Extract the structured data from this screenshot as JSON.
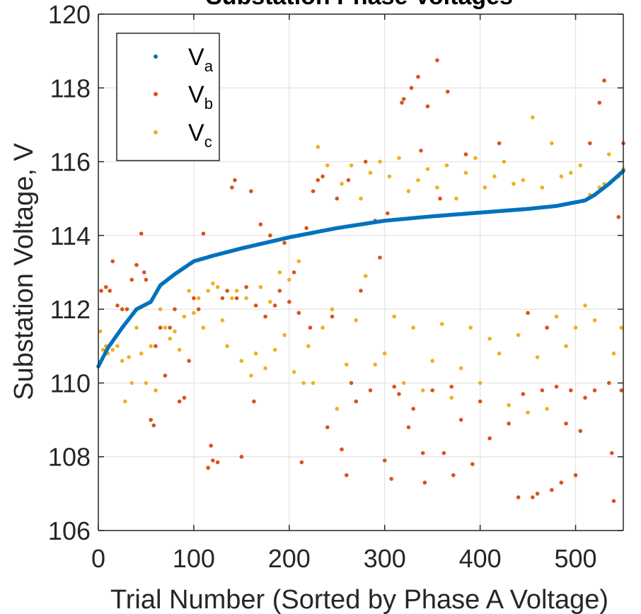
{
  "chart_data": {
    "type": "scatter",
    "title": "Substation Phase Voltages",
    "xlabel": "Trial Number (Sorted by Phase A Voltage)",
    "ylabel": "Substation Voltage, V",
    "xlim": [
      0,
      550
    ],
    "ylim": [
      106,
      120
    ],
    "xticks": [
      "0",
      "100",
      "200",
      "300",
      "400",
      "500"
    ],
    "yticks": [
      "106",
      "108",
      "110",
      "112",
      "114",
      "116",
      "118",
      "120"
    ],
    "grid": true,
    "legend_position": "top-left",
    "colors": {
      "Va": "#0072BD",
      "Vb": "#D95319",
      "Vc": "#EDB120",
      "grid": "#e3e3e3",
      "axis": "#262626"
    },
    "legend": [
      {
        "base": "V",
        "sub": "a"
      },
      {
        "base": "V",
        "sub": "b"
      },
      {
        "base": "V",
        "sub": "c"
      }
    ],
    "series": [
      {
        "name": "Va",
        "description_curve_knots": [
          [
            0,
            110.45
          ],
          [
            10,
            110.95
          ],
          [
            25,
            111.5
          ],
          [
            40,
            112.0
          ],
          [
            55,
            112.2
          ],
          [
            65,
            112.65
          ],
          [
            80,
            112.95
          ],
          [
            100,
            113.3
          ],
          [
            120,
            113.45
          ],
          [
            150,
            113.65
          ],
          [
            200,
            113.95
          ],
          [
            250,
            114.2
          ],
          [
            300,
            114.4
          ],
          [
            350,
            114.52
          ],
          [
            400,
            114.62
          ],
          [
            450,
            114.72
          ],
          [
            480,
            114.8
          ],
          [
            500,
            114.9
          ],
          [
            510,
            114.95
          ],
          [
            520,
            115.1
          ],
          [
            535,
            115.4
          ],
          [
            550,
            115.75
          ]
        ],
        "values": [
          [
            0,
            110.45
          ],
          [
            25,
            111.5
          ],
          [
            50,
            112.1
          ],
          [
            75,
            112.85
          ],
          [
            100,
            113.3
          ],
          [
            150,
            113.65
          ],
          [
            200,
            113.95
          ],
          [
            250,
            114.2
          ],
          [
            300,
            114.4
          ],
          [
            350,
            114.52
          ],
          [
            400,
            114.62
          ],
          [
            450,
            114.72
          ],
          [
            500,
            114.9
          ],
          [
            550,
            115.75
          ]
        ]
      },
      {
        "name": "Vb",
        "points": [
          [
            3,
            112.5
          ],
          [
            8,
            112.6
          ],
          [
            12,
            112.5
          ],
          [
            15,
            113.3
          ],
          [
            20,
            112.1
          ],
          [
            25,
            112.0
          ],
          [
            30,
            112.0
          ],
          [
            35,
            112.8
          ],
          [
            40,
            113.2
          ],
          [
            45,
            114.05
          ],
          [
            48,
            113.0
          ],
          [
            50,
            112.8
          ],
          [
            55,
            109.0
          ],
          [
            58,
            108.85
          ],
          [
            60,
            111.0
          ],
          [
            65,
            111.5
          ],
          [
            70,
            110.2
          ],
          [
            75,
            111.5
          ],
          [
            80,
            112.0
          ],
          [
            85,
            109.5
          ],
          [
            90,
            109.6
          ],
          [
            95,
            110.6
          ],
          [
            100,
            112.3
          ],
          [
            105,
            112.0
          ],
          [
            110,
            114.05
          ],
          [
            115,
            107.7
          ],
          [
            118,
            108.3
          ],
          [
            120,
            107.9
          ],
          [
            125,
            107.85
          ],
          [
            130,
            112.3
          ],
          [
            135,
            112.5
          ],
          [
            140,
            115.3
          ],
          [
            143,
            115.5
          ],
          [
            145,
            112.3
          ],
          [
            150,
            108.0
          ],
          [
            155,
            112.6
          ],
          [
            160,
            115.2
          ],
          [
            163,
            109.5
          ],
          [
            165,
            112.1
          ],
          [
            170,
            114.3
          ],
          [
            175,
            111.8
          ],
          [
            180,
            114.0
          ],
          [
            185,
            112.1
          ],
          [
            190,
            112.5
          ],
          [
            195,
            113.8
          ],
          [
            200,
            112.2
          ],
          [
            205,
            113.0
          ],
          [
            210,
            111.9
          ],
          [
            213,
            107.85
          ],
          [
            218,
            114.2
          ],
          [
            222,
            111.5
          ],
          [
            225,
            115.2
          ],
          [
            230,
            115.5
          ],
          [
            235,
            115.6
          ],
          [
            240,
            108.8
          ],
          [
            245,
            111.8
          ],
          [
            250,
            115.0
          ],
          [
            255,
            108.2
          ],
          [
            260,
            107.5
          ],
          [
            262,
            115.5
          ],
          [
            265,
            110.0
          ],
          [
            270,
            109.5
          ],
          [
            275,
            112.5
          ],
          [
            280,
            116.0
          ],
          [
            285,
            109.8
          ],
          [
            290,
            114.4
          ],
          [
            295,
            113.4
          ],
          [
            300,
            107.9
          ],
          [
            303,
            114.6
          ],
          [
            307,
            107.4
          ],
          [
            310,
            109.9
          ],
          [
            315,
            109.7
          ],
          [
            318,
            117.6
          ],
          [
            320,
            117.7
          ],
          [
            325,
            108.8
          ],
          [
            328,
            118.0
          ],
          [
            330,
            109.3
          ],
          [
            335,
            118.3
          ],
          [
            338,
            116.3
          ],
          [
            340,
            108.1
          ],
          [
            342,
            107.3
          ],
          [
            345,
            117.5
          ],
          [
            350,
            109.8
          ],
          [
            355,
            118.75
          ],
          [
            358,
            115.0
          ],
          [
            362,
            108.1
          ],
          [
            366,
            117.9
          ],
          [
            370,
            109.9
          ],
          [
            372,
            107.5
          ],
          [
            380,
            109.0
          ],
          [
            385,
            116.2
          ],
          [
            392,
            107.8
          ],
          [
            400,
            109.5
          ],
          [
            410,
            108.5
          ],
          [
            420,
            116.5
          ],
          [
            430,
            108.9
          ],
          [
            440,
            106.9
          ],
          [
            445,
            109.7
          ],
          [
            450,
            111.9
          ],
          [
            455,
            106.9
          ],
          [
            460,
            107.0
          ],
          [
            465,
            109.8
          ],
          [
            470,
            111.5
          ],
          [
            475,
            107.1
          ],
          [
            480,
            109.9
          ],
          [
            485,
            107.3
          ],
          [
            490,
            108.9
          ],
          [
            495,
            109.8
          ],
          [
            500,
            107.5
          ],
          [
            505,
            108.7
          ],
          [
            510,
            109.6
          ],
          [
            515,
            116.5
          ],
          [
            520,
            109.8
          ],
          [
            525,
            117.6
          ],
          [
            530,
            118.2
          ],
          [
            535,
            110.0
          ],
          [
            538,
            108.1
          ],
          [
            540,
            106.8
          ],
          [
            545,
            114.5
          ],
          [
            548,
            109.8
          ],
          [
            550,
            116.5
          ]
        ]
      },
      {
        "name": "Vc",
        "points": [
          [
            2,
            111.4
          ],
          [
            5,
            110.9
          ],
          [
            8,
            111.0
          ],
          [
            10,
            110.8
          ],
          [
            15,
            110.9
          ],
          [
            20,
            111.0
          ],
          [
            25,
            110.6
          ],
          [
            28,
            109.5
          ],
          [
            32,
            110.7
          ],
          [
            35,
            110.0
          ],
          [
            40,
            111.5
          ],
          [
            45,
            110.8
          ],
          [
            50,
            110.0
          ],
          [
            55,
            111.0
          ],
          [
            60,
            109.8
          ],
          [
            65,
            112.0
          ],
          [
            70,
            111.5
          ],
          [
            75,
            111.2
          ],
          [
            80,
            111.4
          ],
          [
            85,
            110.9
          ],
          [
            90,
            111.8
          ],
          [
            95,
            112.5
          ],
          [
            100,
            111.9
          ],
          [
            105,
            112.3
          ],
          [
            110,
            111.5
          ],
          [
            115,
            112.5
          ],
          [
            120,
            112.7
          ],
          [
            125,
            112.6
          ],
          [
            130,
            111.7
          ],
          [
            135,
            111.0
          ],
          [
            140,
            112.3
          ],
          [
            145,
            112.5
          ],
          [
            150,
            110.6
          ],
          [
            155,
            112.3
          ],
          [
            160,
            110.2
          ],
          [
            165,
            110.8
          ],
          [
            170,
            112.6
          ],
          [
            175,
            110.4
          ],
          [
            180,
            112.2
          ],
          [
            185,
            110.9
          ],
          [
            190,
            113.0
          ],
          [
            195,
            111.3
          ],
          [
            200,
            112.8
          ],
          [
            205,
            110.3
          ],
          [
            210,
            113.3
          ],
          [
            215,
            110.0
          ],
          [
            220,
            111.0
          ],
          [
            225,
            110.0
          ],
          [
            230,
            116.4
          ],
          [
            235,
            111.5
          ],
          [
            240,
            115.9
          ],
          [
            245,
            112.0
          ],
          [
            250,
            109.3
          ],
          [
            255,
            115.4
          ],
          [
            260,
            110.5
          ],
          [
            265,
            115.9
          ],
          [
            270,
            111.7
          ],
          [
            275,
            115.0
          ],
          [
            280,
            112.9
          ],
          [
            285,
            115.7
          ],
          [
            290,
            110.5
          ],
          [
            295,
            116.0
          ],
          [
            300,
            110.8
          ],
          [
            305,
            115.6
          ],
          [
            310,
            111.8
          ],
          [
            315,
            116.1
          ],
          [
            320,
            110.0
          ],
          [
            325,
            115.2
          ],
          [
            330,
            111.5
          ],
          [
            335,
            115.5
          ],
          [
            340,
            109.8
          ],
          [
            345,
            115.8
          ],
          [
            350,
            110.6
          ],
          [
            355,
            115.3
          ],
          [
            360,
            111.6
          ],
          [
            365,
            115.9
          ],
          [
            370,
            109.6
          ],
          [
            375,
            115.0
          ],
          [
            380,
            110.4
          ],
          [
            385,
            115.7
          ],
          [
            390,
            111.5
          ],
          [
            395,
            116.1
          ],
          [
            400,
            110.0
          ],
          [
            405,
            115.3
          ],
          [
            410,
            111.2
          ],
          [
            415,
            115.6
          ],
          [
            420,
            110.8
          ],
          [
            425,
            116.0
          ],
          [
            430,
            109.4
          ],
          [
            435,
            115.4
          ],
          [
            440,
            111.3
          ],
          [
            445,
            115.5
          ],
          [
            450,
            109.2
          ],
          [
            455,
            117.2
          ],
          [
            460,
            110.7
          ],
          [
            465,
            115.3
          ],
          [
            470,
            109.3
          ],
          [
            475,
            116.5
          ],
          [
            480,
            111.8
          ],
          [
            485,
            115.6
          ],
          [
            490,
            111.0
          ],
          [
            495,
            115.7
          ],
          [
            500,
            111.5
          ],
          [
            505,
            115.9
          ],
          [
            510,
            112.1
          ],
          [
            515,
            115.1
          ],
          [
            520,
            111.7
          ],
          [
            525,
            115.3
          ],
          [
            530,
            115.4
          ],
          [
            535,
            116.2
          ],
          [
            540,
            110.8
          ],
          [
            545,
            115.6
          ],
          [
            548,
            111.5
          ],
          [
            550,
            115.8
          ]
        ]
      }
    ]
  }
}
